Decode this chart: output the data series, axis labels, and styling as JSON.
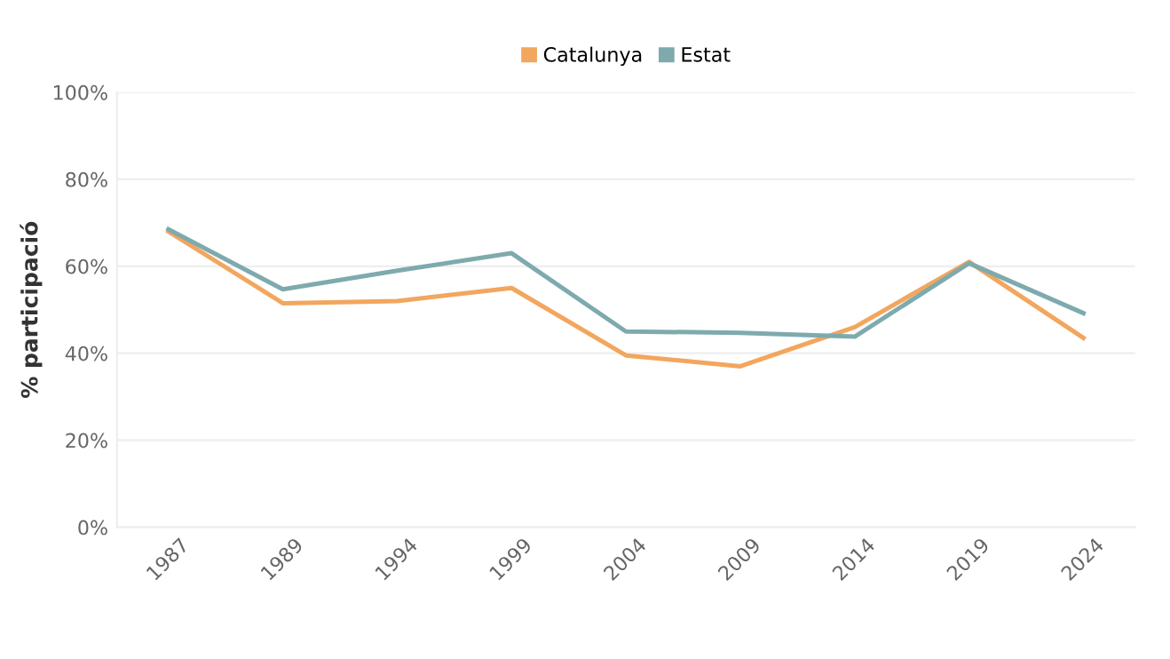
{
  "chart_data": {
    "type": "line",
    "ylabel": "% participació",
    "categories": [
      "1987",
      "1989",
      "1994",
      "1999",
      "2004",
      "2009",
      "2014",
      "2019",
      "2024"
    ],
    "series": [
      {
        "name": "Catalunya",
        "color": "#f2a65e",
        "values": [
          68,
          51.5,
          52,
          55,
          39.5,
          37,
          46,
          61,
          43.5
        ]
      },
      {
        "name": "Estat",
        "color": "#7eaaae",
        "values": [
          68.5,
          54.7,
          59,
          63,
          45,
          44.7,
          43.8,
          60.7,
          49.2
        ]
      }
    ],
    "ylim": [
      0,
      100
    ],
    "yticks": [
      {
        "value": 0,
        "label": "0%"
      },
      {
        "value": 20,
        "label": "20%"
      },
      {
        "value": 40,
        "label": "40%"
      },
      {
        "value": 60,
        "label": "60%"
      },
      {
        "value": 80,
        "label": "80%"
      },
      {
        "value": 100,
        "label": "100%"
      }
    ],
    "grid": "y",
    "legend": "top",
    "marker": "none",
    "line_style": "solid"
  }
}
